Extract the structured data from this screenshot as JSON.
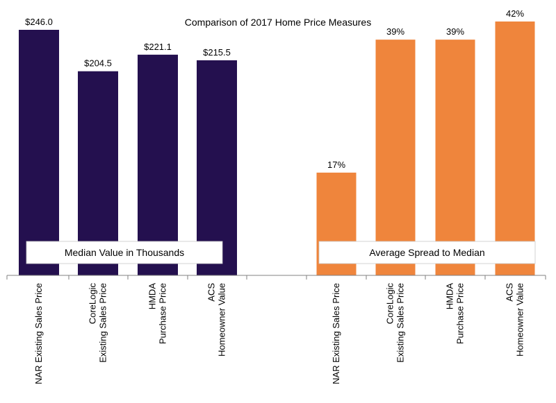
{
  "chart_data": {
    "type": "bar",
    "title": "Comparison of 2017 Home Price Measures",
    "panels": [
      {
        "box_label": "Median Value in Thousands",
        "color": "#24104f",
        "categories": [
          [
            "NAR  Existing Sales Price"
          ],
          [
            "CoreLogic",
            "Existing Sales Price"
          ],
          [
            "HMDA",
            "Purchase Price"
          ],
          [
            "ACS",
            "Homeowner Value"
          ]
        ],
        "values": [
          246.0,
          204.5,
          221.1,
          215.5
        ],
        "labels": [
          "$246.0",
          "$204.5",
          "$221.1",
          "$215.5"
        ],
        "ylim": [
          0,
          246
        ]
      },
      {
        "box_label": "Average Spread to Median",
        "color": "#ef853c",
        "categories": [
          [
            "NAR  Existing Sales Price"
          ],
          [
            "CoreLogic",
            "Existing Sales Price"
          ],
          [
            "HMDA",
            "Purchase Price"
          ],
          [
            "ACS",
            "Homeowner Value"
          ]
        ],
        "values": [
          17,
          39,
          39,
          42
        ],
        "labels": [
          "17%",
          "39%",
          "39%",
          "42%"
        ],
        "ylim": [
          0,
          42
        ]
      }
    ]
  }
}
